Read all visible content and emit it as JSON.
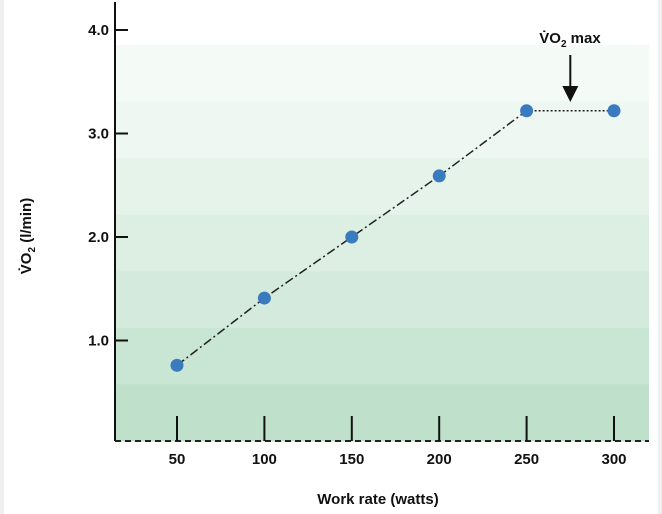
{
  "chart_data": {
    "type": "line",
    "title": "",
    "xlabel": "Work rate (watts)",
    "ylabel": "V̇O₂ (l/min)",
    "ylabel_main": "V̇O",
    "ylabel_sub": "2",
    "ylabel_unit": " (l/min)",
    "xlim": [
      0,
      320
    ],
    "ylim": [
      0,
      4.2
    ],
    "x_ticks": [
      50,
      100,
      150,
      200,
      250,
      300
    ],
    "x_tick_labels": [
      "50",
      "100",
      "150",
      "200",
      "250",
      "300"
    ],
    "y_ticks": [
      1.0,
      2.0,
      3.0,
      4.0
    ],
    "y_tick_labels": [
      "1.0",
      "2.0",
      "3.0",
      "4.0"
    ],
    "grid": false,
    "series": [
      {
        "x": [
          50,
          100,
          150,
          200,
          250,
          300
        ],
        "y": [
          0.76,
          1.41,
          2.0,
          2.59,
          3.22,
          3.22
        ],
        "color": "#3a7bc0",
        "line_style": "dash-dot"
      }
    ],
    "annotation": {
      "text_main": "V̇O",
      "text_sub": "2",
      "text_rest": " max",
      "x": 275,
      "arrow": "down"
    },
    "background_colors": [
      "#f4faf6",
      "#eef7f1",
      "#e5f3ea",
      "#ddefe3",
      "#d3eadc",
      "#c9e5d3",
      "#bfe0cb"
    ]
  }
}
